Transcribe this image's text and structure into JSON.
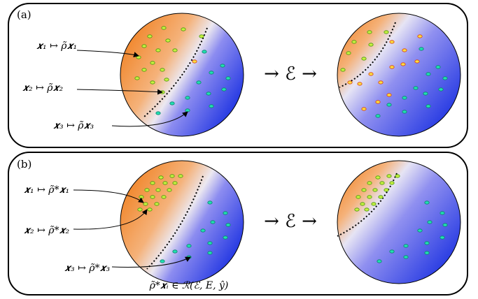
{
  "panels": [
    {
      "label": "(a)",
      "mappings": [
        "𝒙₁ ↦ ρ̃𝒙₁",
        "𝒙₂ ↦ ρ̃𝒙₂",
        "𝒙₃ ↦ ρ̃𝒙₃"
      ],
      "channel": "→  ℰ  →"
    },
    {
      "label": "(b)",
      "mappings": [
        "𝒙₁ ↦ ρ̃*𝒙₁",
        "𝒙₂ ↦ ρ̃*𝒙₂",
        "𝒙₃ ↦ ρ̃*𝒙₃"
      ],
      "channel": "→  ℰ  →",
      "caption": "ρ̃*𝒙ᵢ ∈ ℛ(ℰ, E, ŷ)"
    }
  ]
}
